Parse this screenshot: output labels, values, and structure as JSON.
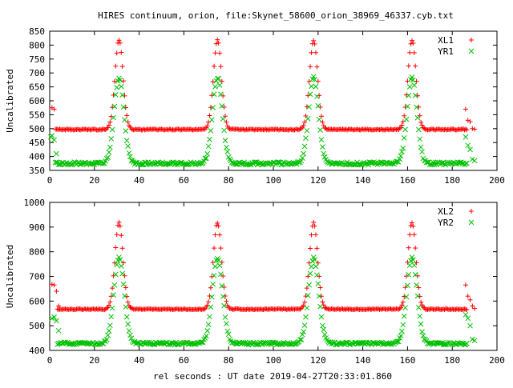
{
  "title": "HIRES continuum, orion, file:Skynet_58600_orion_38969_46337.cyb.txt",
  "xlabel": "rel seconds : UT date 2019-04-27T20:33:01.860",
  "colors": {
    "red": "#ff0000",
    "green": "#00c000"
  },
  "chart_data": [
    {
      "type": "scatter",
      "ylabel": "Uncalibrated",
      "xlim": [
        0,
        200
      ],
      "ylim": [
        350,
        850
      ],
      "xticks": [
        "0",
        "20",
        "40",
        "60",
        "80",
        "100",
        "120",
        "140",
        "160",
        "180",
        "200"
      ],
      "yticks": [
        "350",
        "400",
        "450",
        "500",
        "550",
        "600",
        "650",
        "700",
        "750",
        "800",
        "850"
      ],
      "legend_position": "top-right",
      "series": [
        {
          "name": "XL1",
          "marker": "plus",
          "color": "#ff0000",
          "baseline": 497,
          "peak": 818,
          "width": 1.8,
          "peaks_x": [
            31,
            75,
            118,
            162
          ],
          "x_range": [
            0,
            190
          ],
          "step": 0.5,
          "edge_points": [
            [
              1,
              575
            ],
            [
              2,
              570
            ],
            [
              186,
              570
            ],
            [
              187,
              530
            ],
            [
              188,
              525
            ],
            [
              189,
              500
            ],
            [
              190,
              498
            ]
          ]
        },
        {
          "name": "YR1",
          "marker": "cross",
          "color": "#00c000",
          "baseline": 375,
          "peak": 683,
          "width": 2.2,
          "peaks_x": [
            31,
            75,
            118,
            162
          ],
          "x_range": [
            0,
            190
          ],
          "step": 0.5,
          "edge_points": [
            [
              0.5,
              470
            ],
            [
              1,
              475
            ],
            [
              2,
              460
            ],
            [
              3,
              410
            ],
            [
              186,
              470
            ],
            [
              187,
              440
            ],
            [
              188,
              425
            ],
            [
              189,
              390
            ],
            [
              190,
              385
            ]
          ]
        }
      ]
    },
    {
      "type": "scatter",
      "ylabel": "Uncalibrated",
      "xlim": [
        0,
        200
      ],
      "ylim": [
        400,
        1000
      ],
      "xticks": [
        "0",
        "20",
        "40",
        "60",
        "80",
        "100",
        "120",
        "140",
        "160",
        "180",
        "200"
      ],
      "yticks": [
        "400",
        "500",
        "600",
        "700",
        "800",
        "900",
        "1000"
      ],
      "legend_position": "top-right",
      "series": [
        {
          "name": "XL2",
          "marker": "plus",
          "color": "#ff0000",
          "baseline": 567,
          "peak": 918,
          "width": 1.8,
          "peaks_x": [
            31,
            75,
            118,
            162
          ],
          "x_range": [
            1,
            190
          ],
          "step": 0.5,
          "edge_points": [
            [
              1,
              668
            ],
            [
              2,
              665
            ],
            [
              3,
              640
            ],
            [
              4,
              580
            ],
            [
              186,
              665
            ],
            [
              187,
              620
            ],
            [
              188,
              605
            ],
            [
              189,
              580
            ],
            [
              190,
              570
            ]
          ]
        },
        {
          "name": "YR2",
          "marker": "cross",
          "color": "#00c000",
          "baseline": 428,
          "peak": 775,
          "width": 2.3,
          "peaks_x": [
            31,
            75,
            118,
            162
          ],
          "x_range": [
            1,
            190
          ],
          "step": 0.5,
          "edge_points": [
            [
              1,
              530
            ],
            [
              2,
              535
            ],
            [
              3,
              520
            ],
            [
              4,
              480
            ],
            [
              186,
              545
            ],
            [
              187,
              530
            ],
            [
              188,
              500
            ],
            [
              189,
              445
            ],
            [
              190,
              440
            ]
          ]
        }
      ]
    }
  ]
}
